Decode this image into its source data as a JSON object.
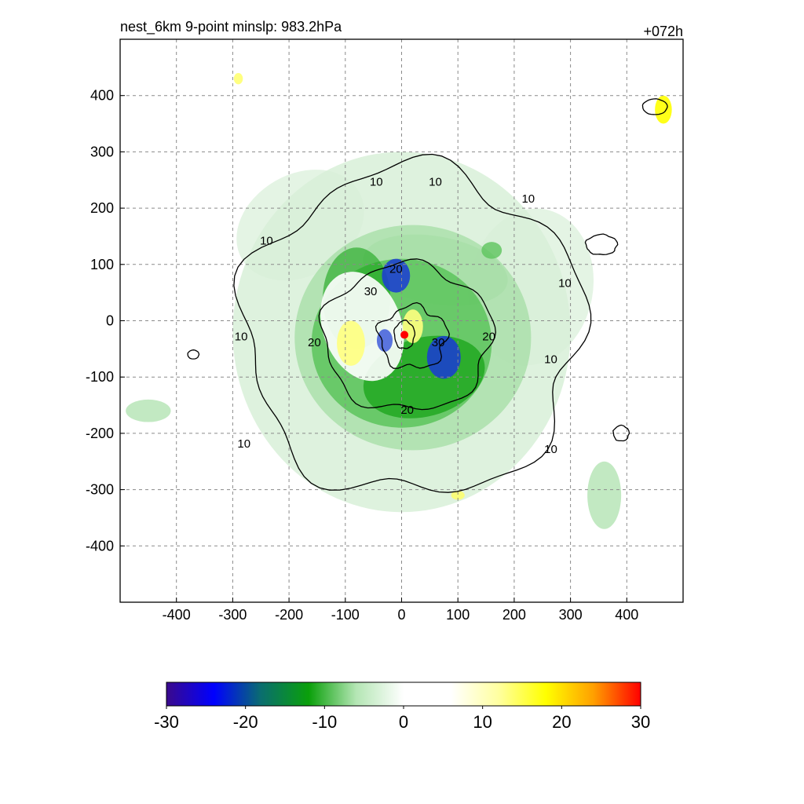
{
  "chart_data": {
    "type": "heatmap",
    "title_left": "nest_6km  9-point minslp: 983.2hPa",
    "title_right": "+072h",
    "xlim": [
      -500,
      500
    ],
    "ylim": [
      -500,
      500
    ],
    "x_ticks": [
      -400,
      -300,
      -200,
      -100,
      0,
      100,
      200,
      300,
      400
    ],
    "y_ticks": [
      400,
      300,
      200,
      100,
      0,
      -100,
      -200,
      -300,
      -400
    ],
    "grid": true,
    "colorbar": {
      "range": [
        -30,
        30
      ],
      "ticks": [
        -30,
        -20,
        -10,
        0,
        10,
        20,
        30
      ],
      "colors": [
        "#3a0a8c",
        "#0000ff",
        "#0a6e6e",
        "#0aa00a",
        "#b4e6b4",
        "#ffffff",
        "#ffffff",
        "#ffffa0",
        "#ffff00",
        "#ffa000",
        "#ff0000"
      ]
    },
    "contour_levels": [
      10,
      20,
      30
    ],
    "contour_labels": [
      "10",
      "10",
      "10",
      "10",
      "10",
      "10",
      "10",
      "10",
      "10",
      "20",
      "20",
      "20",
      "20",
      "30",
      "30"
    ],
    "center_marker": {
      "x": 5,
      "y": -25,
      "color": "#ff0000"
    }
  }
}
